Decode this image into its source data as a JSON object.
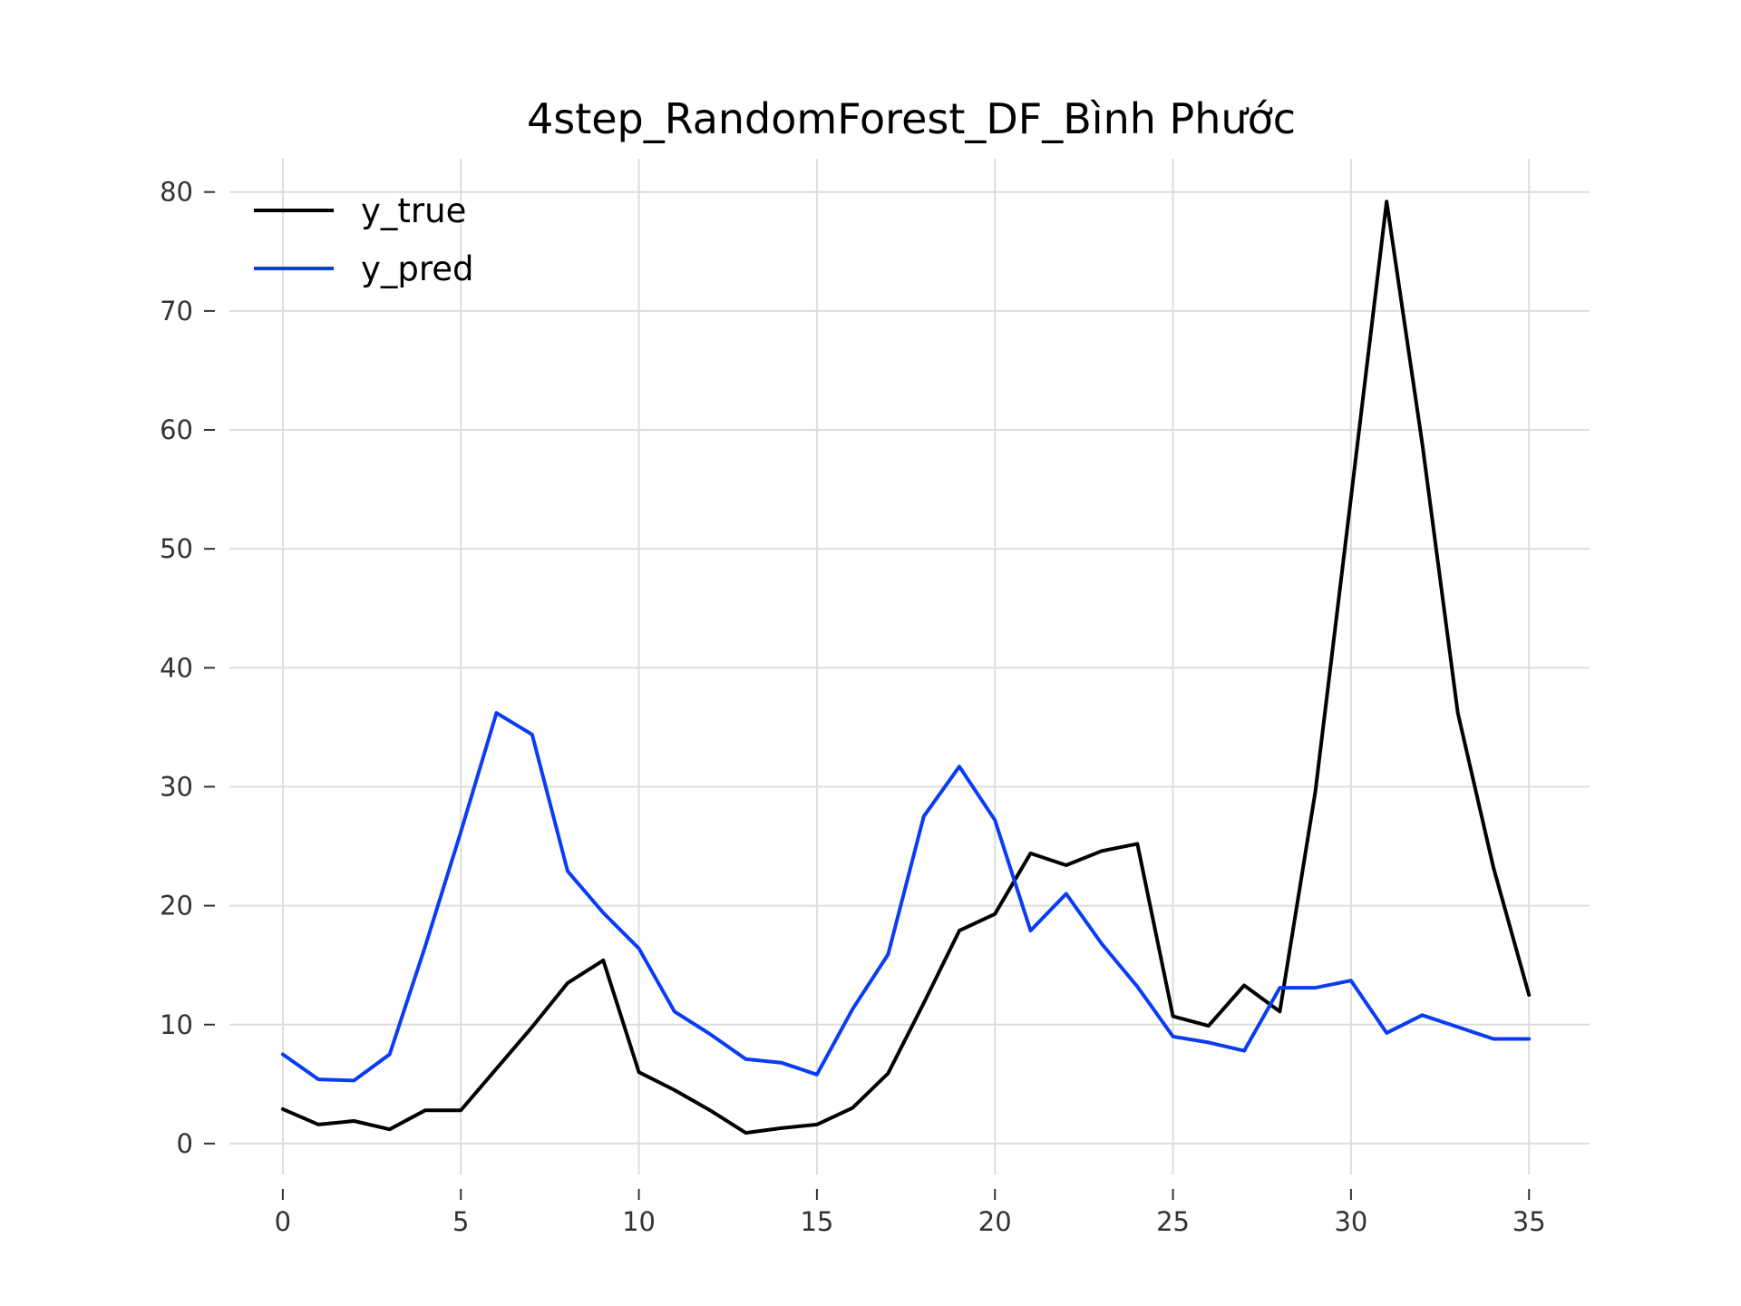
{
  "chart_data": {
    "type": "line",
    "title": "4step_RandomForest_DF_Bình Phước",
    "xlabel": "",
    "ylabel": "",
    "xlim": [
      -1.5,
      36.7
    ],
    "ylim": [
      -2.6,
      82.8
    ],
    "x_ticks": [
      0,
      5,
      10,
      15,
      20,
      25,
      30,
      35
    ],
    "y_ticks": [
      0,
      10,
      20,
      30,
      40,
      50,
      60,
      70,
      80
    ],
    "grid": true,
    "legend_position": "top-left",
    "x": [
      0,
      1,
      2,
      3,
      4,
      5,
      6,
      7,
      8,
      9,
      10,
      11,
      12,
      13,
      14,
      15,
      16,
      17,
      18,
      19,
      20,
      21,
      22,
      23,
      24,
      25,
      26,
      27,
      28,
      29,
      30,
      31,
      32,
      33,
      34,
      35
    ],
    "series": [
      {
        "name": "y_true",
        "color": "#000000",
        "values": [
          2.9,
          1.6,
          1.9,
          1.2,
          2.8,
          2.8,
          6.3,
          9.8,
          13.5,
          15.4,
          6.0,
          4.5,
          2.8,
          0.9,
          1.3,
          1.6,
          3.0,
          5.9,
          11.8,
          17.9,
          19.3,
          24.4,
          23.4,
          24.6,
          25.2,
          10.7,
          9.9,
          13.3,
          11.1,
          29.6,
          54.3,
          79.2,
          58.9,
          36.2,
          23.2,
          12.5
        ]
      },
      {
        "name": "y_pred",
        "color": "#0a3cf5",
        "values": [
          7.5,
          5.4,
          5.3,
          7.5,
          16.6,
          26.2,
          36.2,
          34.4,
          22.9,
          19.4,
          16.4,
          11.1,
          9.2,
          7.1,
          6.8,
          5.8,
          11.3,
          15.9,
          27.5,
          31.7,
          27.2,
          17.9,
          21.0,
          16.8,
          13.2,
          9.0,
          8.5,
          7.8,
          13.1,
          13.1,
          13.7,
          9.3,
          10.8,
          9.8,
          8.8,
          8.8
        ]
      }
    ]
  }
}
